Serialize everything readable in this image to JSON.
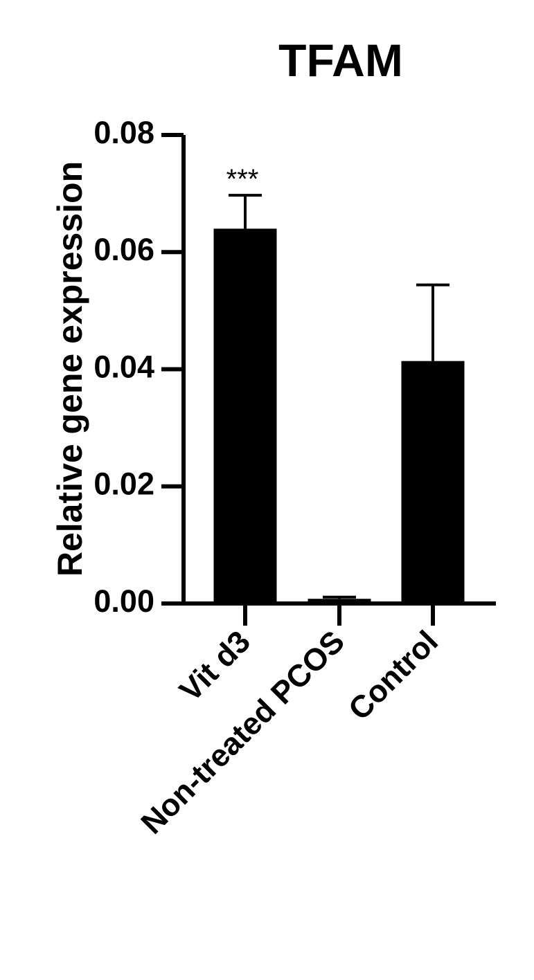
{
  "chart_data": {
    "type": "bar",
    "title": "TFAM",
    "xlabel": "",
    "ylabel": "Relative gene expression",
    "categories": [
      "Vit d3",
      "Non-treated PCOS",
      "Control"
    ],
    "values": [
      0.064,
      0.0008,
      0.0414
    ],
    "error_upper": [
      0.0697,
      0.0011,
      0.0544
    ],
    "annotations": [
      "***",
      "",
      ""
    ],
    "ylim": [
      0,
      0.08
    ],
    "yticks": [
      "0.00",
      "0.02",
      "0.04",
      "0.06",
      "0.08"
    ],
    "ytick_values": [
      0,
      0.02,
      0.04,
      0.06,
      0.08
    ],
    "grid": false,
    "legend": "none",
    "bar_color": "#000000"
  }
}
